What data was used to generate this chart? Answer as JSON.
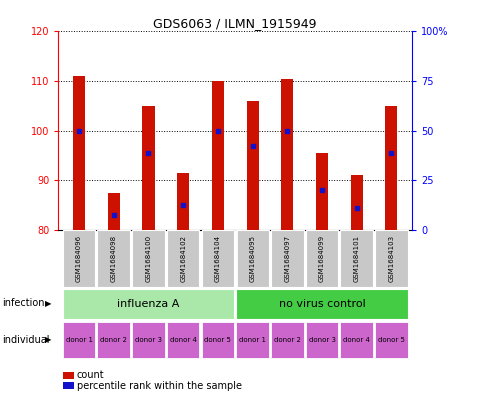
{
  "title": "GDS6063 / ILMN_1915949",
  "samples": [
    "GSM1684096",
    "GSM1684098",
    "GSM1684100",
    "GSM1684102",
    "GSM1684104",
    "GSM1684095",
    "GSM1684097",
    "GSM1684099",
    "GSM1684101",
    "GSM1684103"
  ],
  "count_values": [
    111,
    87.5,
    105,
    91.5,
    110,
    106,
    110.5,
    95.5,
    91,
    105
  ],
  "percentile_values": [
    100,
    83,
    95.5,
    85,
    100,
    97,
    100,
    88,
    84.5,
    95.5
  ],
  "ymin": 80,
  "ymax": 120,
  "yticks": [
    80,
    90,
    100,
    110,
    120
  ],
  "right_yticks_vals": [
    0,
    25,
    50,
    75,
    100
  ],
  "right_yticks_labels": [
    "0",
    "25",
    "50",
    "75",
    "100%"
  ],
  "infection_groups": [
    {
      "label": "influenza A",
      "start": 0,
      "end": 4,
      "color": "#aae8aa"
    },
    {
      "label": "no virus control",
      "start": 5,
      "end": 9,
      "color": "#44cc44"
    }
  ],
  "individual_labels": [
    "donor 1",
    "donor 2",
    "donor 3",
    "donor 4",
    "donor 5",
    "donor 1",
    "donor 2",
    "donor 3",
    "donor 4",
    "donor 5"
  ],
  "individual_color": "#cc66cc",
  "bar_color": "#cc1100",
  "marker_color": "#1111cc",
  "bar_width": 0.35,
  "sample_bg_color": "#c8c8c8",
  "figsize": [
    4.85,
    3.93
  ],
  "dpi": 100
}
